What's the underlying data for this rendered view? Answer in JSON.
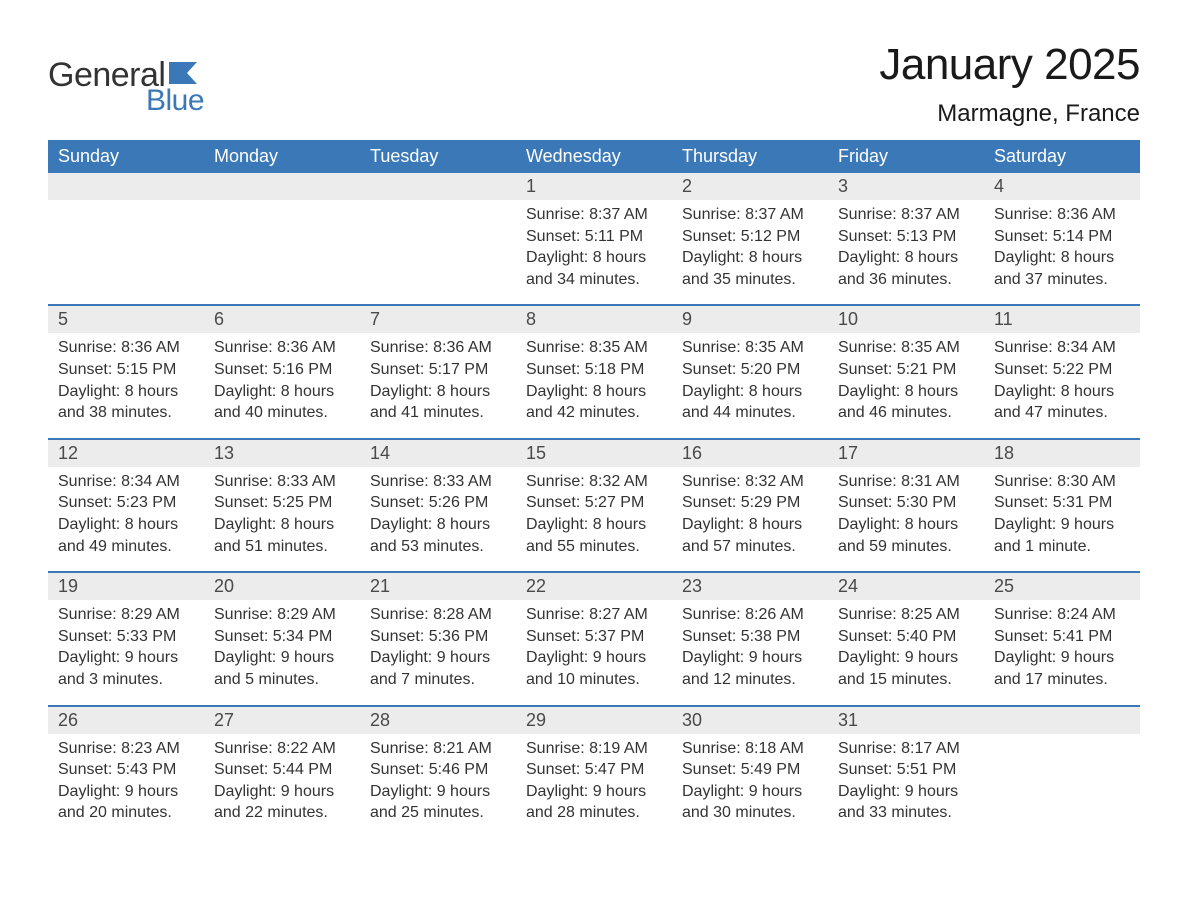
{
  "brand": {
    "general": "General",
    "blue": "Blue",
    "flag_color": "#3b78b8",
    "text_color": "#333333"
  },
  "title": "January 2025",
  "location": "Marmagne, France",
  "colors": {
    "header_bg": "#3b78b8",
    "header_text": "#ffffff",
    "daynum_bg": "#ececec",
    "week_border": "#3b78b8",
    "body_text": "#333333",
    "page_bg": "#ffffff"
  },
  "typography": {
    "title_fontsize": 44,
    "location_fontsize": 24,
    "dayheader_fontsize": 18,
    "body_fontsize": 16
  },
  "day_labels": [
    "Sunday",
    "Monday",
    "Tuesday",
    "Wednesday",
    "Thursday",
    "Friday",
    "Saturday"
  ],
  "weeks": [
    [
      null,
      null,
      null,
      {
        "n": "1",
        "sunrise": "Sunrise: 8:37 AM",
        "sunset": "Sunset: 5:11 PM",
        "d1": "Daylight: 8 hours",
        "d2": "and 34 minutes."
      },
      {
        "n": "2",
        "sunrise": "Sunrise: 8:37 AM",
        "sunset": "Sunset: 5:12 PM",
        "d1": "Daylight: 8 hours",
        "d2": "and 35 minutes."
      },
      {
        "n": "3",
        "sunrise": "Sunrise: 8:37 AM",
        "sunset": "Sunset: 5:13 PM",
        "d1": "Daylight: 8 hours",
        "d2": "and 36 minutes."
      },
      {
        "n": "4",
        "sunrise": "Sunrise: 8:36 AM",
        "sunset": "Sunset: 5:14 PM",
        "d1": "Daylight: 8 hours",
        "d2": "and 37 minutes."
      }
    ],
    [
      {
        "n": "5",
        "sunrise": "Sunrise: 8:36 AM",
        "sunset": "Sunset: 5:15 PM",
        "d1": "Daylight: 8 hours",
        "d2": "and 38 minutes."
      },
      {
        "n": "6",
        "sunrise": "Sunrise: 8:36 AM",
        "sunset": "Sunset: 5:16 PM",
        "d1": "Daylight: 8 hours",
        "d2": "and 40 minutes."
      },
      {
        "n": "7",
        "sunrise": "Sunrise: 8:36 AM",
        "sunset": "Sunset: 5:17 PM",
        "d1": "Daylight: 8 hours",
        "d2": "and 41 minutes."
      },
      {
        "n": "8",
        "sunrise": "Sunrise: 8:35 AM",
        "sunset": "Sunset: 5:18 PM",
        "d1": "Daylight: 8 hours",
        "d2": "and 42 minutes."
      },
      {
        "n": "9",
        "sunrise": "Sunrise: 8:35 AM",
        "sunset": "Sunset: 5:20 PM",
        "d1": "Daylight: 8 hours",
        "d2": "and 44 minutes."
      },
      {
        "n": "10",
        "sunrise": "Sunrise: 8:35 AM",
        "sunset": "Sunset: 5:21 PM",
        "d1": "Daylight: 8 hours",
        "d2": "and 46 minutes."
      },
      {
        "n": "11",
        "sunrise": "Sunrise: 8:34 AM",
        "sunset": "Sunset: 5:22 PM",
        "d1": "Daylight: 8 hours",
        "d2": "and 47 minutes."
      }
    ],
    [
      {
        "n": "12",
        "sunrise": "Sunrise: 8:34 AM",
        "sunset": "Sunset: 5:23 PM",
        "d1": "Daylight: 8 hours",
        "d2": "and 49 minutes."
      },
      {
        "n": "13",
        "sunrise": "Sunrise: 8:33 AM",
        "sunset": "Sunset: 5:25 PM",
        "d1": "Daylight: 8 hours",
        "d2": "and 51 minutes."
      },
      {
        "n": "14",
        "sunrise": "Sunrise: 8:33 AM",
        "sunset": "Sunset: 5:26 PM",
        "d1": "Daylight: 8 hours",
        "d2": "and 53 minutes."
      },
      {
        "n": "15",
        "sunrise": "Sunrise: 8:32 AM",
        "sunset": "Sunset: 5:27 PM",
        "d1": "Daylight: 8 hours",
        "d2": "and 55 minutes."
      },
      {
        "n": "16",
        "sunrise": "Sunrise: 8:32 AM",
        "sunset": "Sunset: 5:29 PM",
        "d1": "Daylight: 8 hours",
        "d2": "and 57 minutes."
      },
      {
        "n": "17",
        "sunrise": "Sunrise: 8:31 AM",
        "sunset": "Sunset: 5:30 PM",
        "d1": "Daylight: 8 hours",
        "d2": "and 59 minutes."
      },
      {
        "n": "18",
        "sunrise": "Sunrise: 8:30 AM",
        "sunset": "Sunset: 5:31 PM",
        "d1": "Daylight: 9 hours",
        "d2": "and 1 minute."
      }
    ],
    [
      {
        "n": "19",
        "sunrise": "Sunrise: 8:29 AM",
        "sunset": "Sunset: 5:33 PM",
        "d1": "Daylight: 9 hours",
        "d2": "and 3 minutes."
      },
      {
        "n": "20",
        "sunrise": "Sunrise: 8:29 AM",
        "sunset": "Sunset: 5:34 PM",
        "d1": "Daylight: 9 hours",
        "d2": "and 5 minutes."
      },
      {
        "n": "21",
        "sunrise": "Sunrise: 8:28 AM",
        "sunset": "Sunset: 5:36 PM",
        "d1": "Daylight: 9 hours",
        "d2": "and 7 minutes."
      },
      {
        "n": "22",
        "sunrise": "Sunrise: 8:27 AM",
        "sunset": "Sunset: 5:37 PM",
        "d1": "Daylight: 9 hours",
        "d2": "and 10 minutes."
      },
      {
        "n": "23",
        "sunrise": "Sunrise: 8:26 AM",
        "sunset": "Sunset: 5:38 PM",
        "d1": "Daylight: 9 hours",
        "d2": "and 12 minutes."
      },
      {
        "n": "24",
        "sunrise": "Sunrise: 8:25 AM",
        "sunset": "Sunset: 5:40 PM",
        "d1": "Daylight: 9 hours",
        "d2": "and 15 minutes."
      },
      {
        "n": "25",
        "sunrise": "Sunrise: 8:24 AM",
        "sunset": "Sunset: 5:41 PM",
        "d1": "Daylight: 9 hours",
        "d2": "and 17 minutes."
      }
    ],
    [
      {
        "n": "26",
        "sunrise": "Sunrise: 8:23 AM",
        "sunset": "Sunset: 5:43 PM",
        "d1": "Daylight: 9 hours",
        "d2": "and 20 minutes."
      },
      {
        "n": "27",
        "sunrise": "Sunrise: 8:22 AM",
        "sunset": "Sunset: 5:44 PM",
        "d1": "Daylight: 9 hours",
        "d2": "and 22 minutes."
      },
      {
        "n": "28",
        "sunrise": "Sunrise: 8:21 AM",
        "sunset": "Sunset: 5:46 PM",
        "d1": "Daylight: 9 hours",
        "d2": "and 25 minutes."
      },
      {
        "n": "29",
        "sunrise": "Sunrise: 8:19 AM",
        "sunset": "Sunset: 5:47 PM",
        "d1": "Daylight: 9 hours",
        "d2": "and 28 minutes."
      },
      {
        "n": "30",
        "sunrise": "Sunrise: 8:18 AM",
        "sunset": "Sunset: 5:49 PM",
        "d1": "Daylight: 9 hours",
        "d2": "and 30 minutes."
      },
      {
        "n": "31",
        "sunrise": "Sunrise: 8:17 AM",
        "sunset": "Sunset: 5:51 PM",
        "d1": "Daylight: 9 hours",
        "d2": "and 33 minutes."
      },
      null
    ]
  ]
}
